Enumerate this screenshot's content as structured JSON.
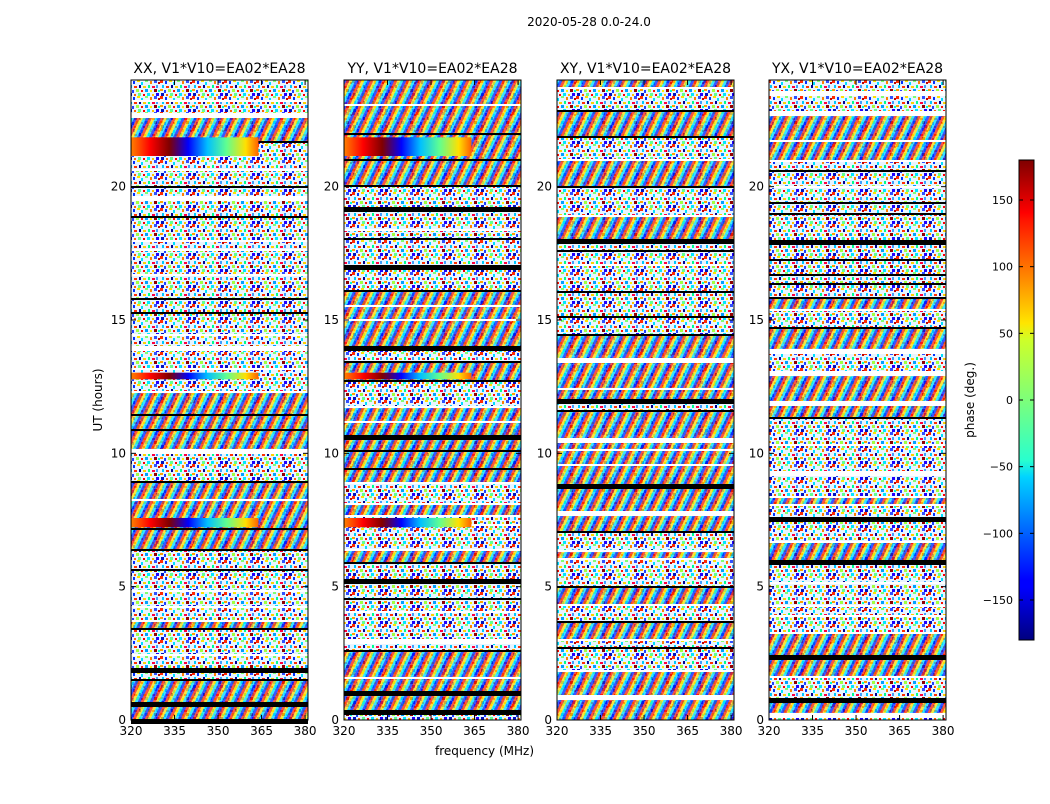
{
  "figure": {
    "suptitle": "2020-05-28 0.0-24.0"
  },
  "chart_data": [
    {
      "type": "heatmap",
      "title": "XX, V1*V10=EA02*EA28",
      "xlabel": "",
      "ylabel": "UT (hours)",
      "xlim": [
        320,
        381
      ],
      "ylim": [
        0,
        24
      ],
      "xticks": [
        320,
        335,
        350,
        365,
        380
      ],
      "yticks": [
        0,
        5,
        10,
        15,
        20
      ],
      "value": "phase"
    },
    {
      "type": "heatmap",
      "title": "YY, V1*V10=EA02*EA28",
      "xlabel": "frequency (MHz)",
      "ylabel": "",
      "xlim": [
        320,
        381
      ],
      "ylim": [
        0,
        24
      ],
      "xticks": [
        320,
        335,
        350,
        365,
        380
      ],
      "yticks": [
        0,
        5,
        10,
        15,
        20
      ],
      "value": "phase"
    },
    {
      "type": "heatmap",
      "title": "XY, V1*V10=EA02*EA28",
      "xlabel": "",
      "ylabel": "",
      "xlim": [
        320,
        381
      ],
      "ylim": [
        0,
        24
      ],
      "xticks": [
        320,
        335,
        350,
        365,
        380
      ],
      "yticks": [
        0,
        5,
        10,
        15,
        20
      ],
      "value": "phase"
    },
    {
      "type": "heatmap",
      "title": "YX, V1*V10=EA02*EA28",
      "xlabel": "",
      "ylabel": "",
      "xlim": [
        320,
        381
      ],
      "ylim": [
        0,
        24
      ],
      "xticks": [
        320,
        335,
        350,
        365,
        380
      ],
      "yticks": [
        0,
        5,
        10,
        15,
        20
      ],
      "value": "phase"
    }
  ],
  "colorbar": {
    "label": "phase (deg.)",
    "range": [
      -180,
      180
    ],
    "ticks": [
      150,
      100,
      50,
      0,
      -50,
      -100,
      -150
    ],
    "tick_labels": [
      "150",
      "100",
      "50",
      "0",
      "−50",
      "−100",
      "−150"
    ],
    "colormap": "jet"
  }
}
